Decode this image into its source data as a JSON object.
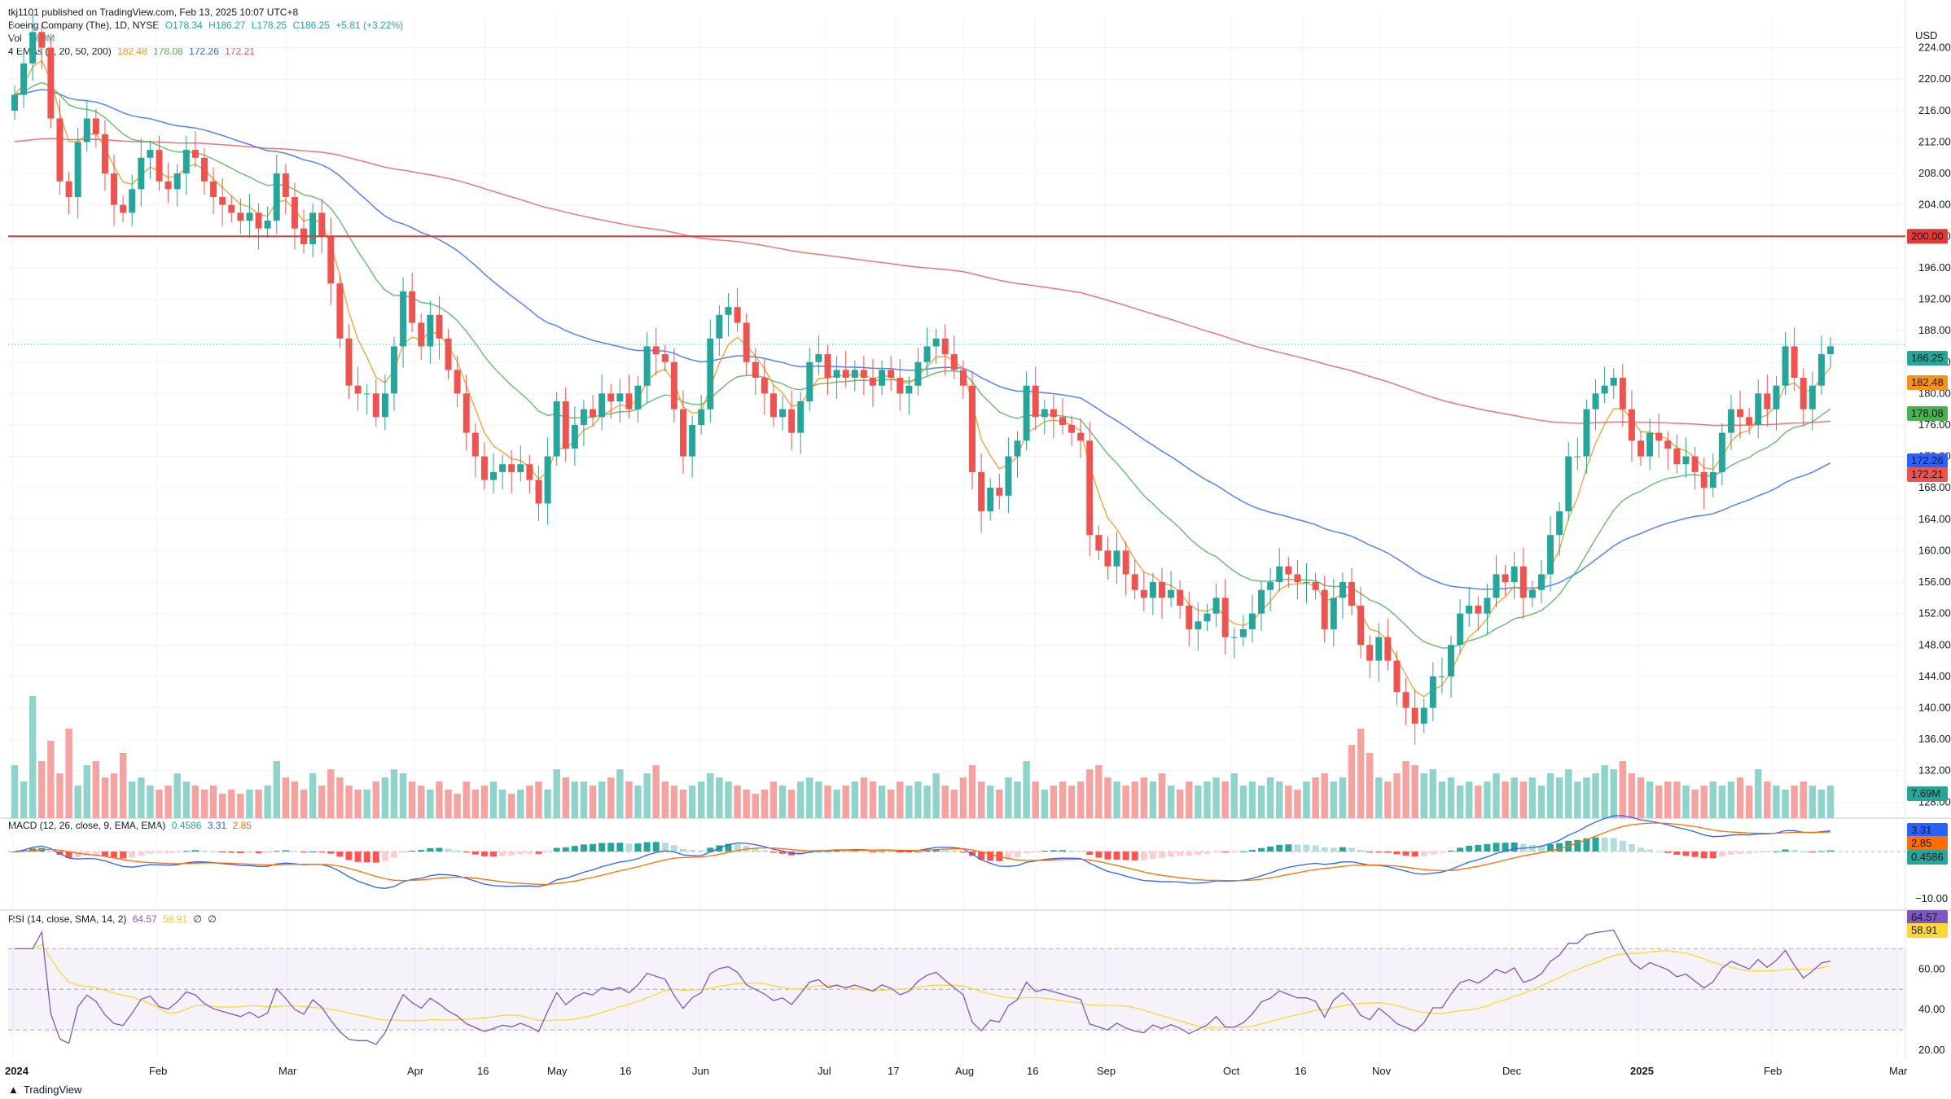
{
  "publisher": "tkj1101 published on TradingView.com, Feb 13, 2025 10:07 UTC+8",
  "legend": {
    "symbol": "Boeing Company (The), 1D, NYSE",
    "open": "O178.34",
    "high": "H186.27",
    "low": "L178.25",
    "close": "C186.25",
    "change": "+5.81 (+3.22%)",
    "vol_label": "Vol",
    "vol_value": "7.69M",
    "ema_label": "4 EMAs (5, 20, 50, 200)",
    "ema_values": [
      "182.48",
      "178.08",
      "172.26",
      "172.21"
    ],
    "macd_label": "MACD (12, 26, close, 9, EMA, EMA)",
    "macd_values": [
      "0.4586",
      "3.31",
      "2.85"
    ],
    "rsi_label": "RSI (14, close, SMA, 14, 2)",
    "rsi_values": [
      "64.57",
      "58.91",
      "∅",
      "∅"
    ]
  },
  "currency": "USD",
  "footer": "TradingView",
  "colors": {
    "up": "#26a69a",
    "down": "#ef5350",
    "ema5": "#f7931a",
    "ema20": "#4caf50",
    "ema50": "#2962ff",
    "ema200": "#ef5350",
    "macd": "#2962ff",
    "signal": "#ff6d00",
    "rsi": "#7e57c2",
    "rsi_ma": "#fdd835",
    "level": "#e53935"
  },
  "chart_data": {
    "type": "candlestick",
    "price_axis": {
      "ylim": [
        127,
        228
      ],
      "ticks": [
        "224.00",
        "220.00",
        "216.00",
        "212.00",
        "208.00",
        "204.00",
        "200.00",
        "196.00",
        "192.00",
        "188.00",
        "184.00",
        "180.00",
        "176.00",
        "172.00",
        "168.00",
        "164.00",
        "160.00",
        "156.00",
        "152.00",
        "148.00",
        "144.00",
        "140.00",
        "136.00",
        "132.00",
        "128.00"
      ]
    },
    "x_labels": [
      "2024",
      "Feb",
      "Mar",
      "Apr",
      "16",
      "May",
      "16",
      "Jun",
      "Jul",
      "17",
      "Aug",
      "16",
      "Sep",
      "Oct",
      "16",
      "Nov",
      "Dec",
      "2025",
      "Feb",
      "Mar"
    ],
    "horizontal_level": 200.0,
    "last_close": 186.25,
    "price_badges": [
      {
        "text": "200.00",
        "value": 200.0,
        "color": "#e53935"
      },
      {
        "text": "186.25",
        "value": 186.25,
        "color": "#26a69a"
      },
      {
        "text": "182.48",
        "value": 182.48,
        "color": "#f7931a"
      },
      {
        "text": "178.08",
        "value": 178.08,
        "color": "#4caf50"
      },
      {
        "text": "172.26",
        "value": 172.26,
        "color": "#2962ff"
      },
      {
        "text": "172.21",
        "value": 172.21,
        "color": "#ef5350"
      }
    ],
    "closes": [
      218,
      222,
      226,
      224,
      215,
      207,
      205,
      212,
      215,
      213,
      208,
      204,
      203,
      206,
      210,
      211,
      207,
      206,
      208,
      211,
      210,
      207,
      205,
      204,
      203,
      202,
      203,
      201,
      202,
      208,
      205,
      201,
      199,
      203,
      200,
      194,
      187,
      181,
      180,
      180,
      177,
      180,
      186,
      193,
      189,
      186,
      190,
      187,
      183,
      180,
      175,
      172,
      169,
      170,
      171,
      170,
      171,
      169,
      166,
      172,
      179,
      173,
      176,
      178,
      177,
      180,
      179,
      180,
      178,
      181,
      186,
      185,
      184,
      178,
      172,
      176,
      178,
      187,
      190,
      191,
      189,
      184,
      182,
      180,
      177,
      178,
      175,
      179,
      184,
      185,
      182,
      183,
      182,
      183,
      182,
      181,
      183,
      182,
      180,
      181,
      184,
      186,
      187,
      185,
      183,
      181,
      170,
      165,
      168,
      167,
      172,
      174,
      181,
      177,
      178,
      177,
      176,
      175,
      174,
      162,
      160,
      158,
      160,
      157,
      155,
      154,
      156,
      154,
      155,
      153,
      150,
      151,
      152,
      154,
      149,
      149,
      150,
      152,
      155,
      156,
      158,
      157,
      156,
      156,
      155,
      150,
      154,
      156,
      153,
      148,
      146,
      149,
      146,
      142,
      140,
      138,
      140,
      144,
      144,
      148,
      152,
      153,
      152,
      154,
      157,
      156,
      158,
      154,
      155,
      157,
      162,
      165,
      172,
      172,
      178,
      180,
      181,
      182,
      178,
      174,
      172,
      175,
      174,
      173,
      171,
      172,
      170,
      168,
      170,
      175,
      178,
      177,
      176,
      180,
      178,
      181,
      186,
      182,
      178,
      181,
      185,
      186
    ],
    "volume_unit": "M",
    "volumes": [
      13,
      9,
      30,
      14,
      19,
      11,
      22,
      8,
      13,
      14,
      10,
      11,
      16,
      9,
      10,
      8,
      7,
      8,
      11,
      9,
      8,
      7,
      8,
      6,
      7,
      6,
      7,
      7,
      8,
      14,
      10,
      9,
      7,
      11,
      8,
      12,
      10,
      8,
      7,
      7,
      9,
      10,
      12,
      11,
      9,
      8,
      7,
      9,
      7,
      6,
      9,
      7,
      8,
      9,
      7,
      6,
      7,
      8,
      9,
      7,
      12,
      10,
      9,
      9,
      8,
      9,
      10,
      12,
      9,
      8,
      11,
      13,
      9,
      8,
      7,
      8,
      9,
      11,
      10,
      9,
      8,
      7,
      6,
      7,
      9,
      8,
      7,
      9,
      10,
      9,
      8,
      7,
      8,
      9,
      10,
      9,
      8,
      7,
      9,
      8,
      9,
      8,
      11,
      8,
      7,
      10,
      13,
      9,
      8,
      7,
      10,
      9,
      14,
      9,
      7,
      8,
      9,
      8,
      9,
      12,
      13,
      10,
      9,
      8,
      9,
      10,
      9,
      11,
      8,
      7,
      9,
      8,
      9,
      10,
      9,
      11,
      8,
      9,
      8,
      10,
      9,
      8,
      7,
      9,
      10,
      11,
      9,
      10,
      18,
      22,
      16,
      10,
      9,
      11,
      14,
      13,
      11,
      12,
      9,
      10,
      8,
      9,
      8,
      9,
      11,
      9,
      10,
      9,
      10,
      8,
      11,
      10,
      12,
      9,
      10,
      11,
      13,
      12,
      14,
      11,
      10,
      9,
      8,
      9,
      9,
      8,
      7,
      8,
      9,
      8,
      9,
      10,
      8,
      12,
      9,
      8,
      7,
      8,
      9,
      8,
      7,
      8
    ],
    "macd_axis": {
      "ylim": [
        -11,
        5
      ],
      "ticks": [
        "−10.00"
      ]
    },
    "rsi_axis": {
      "ylim": [
        20,
        85
      ],
      "ticks": [
        "80.00",
        "60.00",
        "40.00",
        "20.00"
      ],
      "band": [
        30,
        70
      ]
    }
  }
}
